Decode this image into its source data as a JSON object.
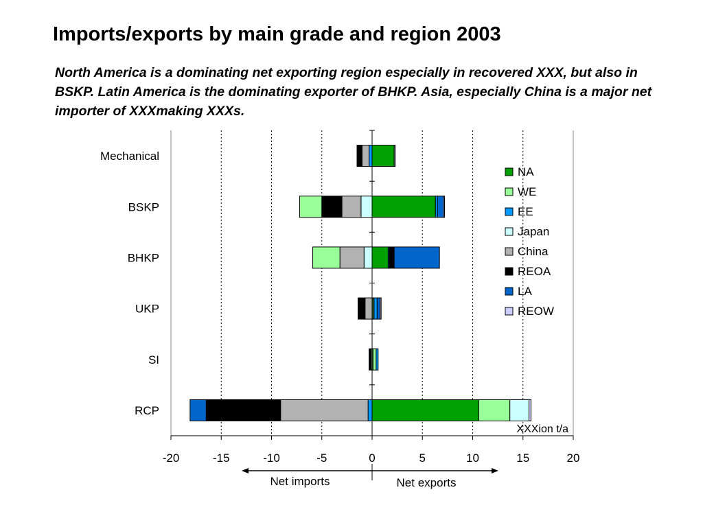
{
  "title": "Imports/exports by main grade and region 2003",
  "subtitle": "North America is a dominating net exporting region especially in recovered XXX, but also in BSKP. Latin America is the dominating exporter of BHKP. Asia, especially China is a major net importer of XXXmaking XXXs.",
  "chart_data": {
    "type": "bar",
    "orientation": "horizontal",
    "stacked": true,
    "categories": [
      "Mechanical",
      "BSKP",
      "BHKP",
      "UKP",
      "SI",
      "RCP"
    ],
    "xlim": [
      -20,
      20
    ],
    "xticks": [
      "-20",
      "-15",
      "-10",
      "-5",
      "0",
      "5",
      "10",
      "15",
      "20"
    ],
    "unit_label": "XXXion t/a",
    "grid": "vertical dotted at 5-unit intervals",
    "legend_position": "right",
    "series": [
      {
        "name": "NA",
        "color": "#00A000",
        "values": [
          2.2,
          6.3,
          1.6,
          0.1,
          0.1,
          10.6
        ]
      },
      {
        "name": "WE",
        "color": "#99FF99",
        "values": [
          0,
          0,
          0,
          0.1,
          0.3,
          3.1
        ]
      },
      {
        "name": "EE",
        "color": "#0099FF",
        "values": [
          -0.3,
          0.2,
          0.1,
          0.3,
          0.2,
          -0.4
        ]
      },
      {
        "name": "Japan",
        "color": "#CCFFFF",
        "values": [
          0,
          -1.1,
          -0.8,
          0,
          0,
          1.9
        ]
      },
      {
        "name": "China",
        "color": "#B2B2B2",
        "values": [
          -0.7,
          -1.9,
          -2.4,
          -0.7,
          -0.1,
          -8.7
        ]
      },
      {
        "name": "REOA",
        "color": "#000000",
        "values": [
          -0.5,
          -2.0,
          0.5,
          -0.7,
          -0.2,
          -7.4
        ]
      },
      {
        "name": "LA",
        "color": "#0066CC",
        "values": [
          0,
          0.6,
          4.5,
          0.3,
          0,
          -1.6
        ]
      },
      {
        "name": "REOW",
        "color": "#CCCCFF",
        "values": [
          0.1,
          0.1,
          0,
          0.1,
          0,
          0.2
        ]
      },
      {
        "name": "",
        "color": "#99FF99",
        "values": [
          0,
          -2.2,
          -2.7,
          0,
          0,
          0
        ]
      }
    ],
    "annotations": {
      "left_arrow": "Net imports",
      "right_arrow": "Net exports"
    }
  }
}
